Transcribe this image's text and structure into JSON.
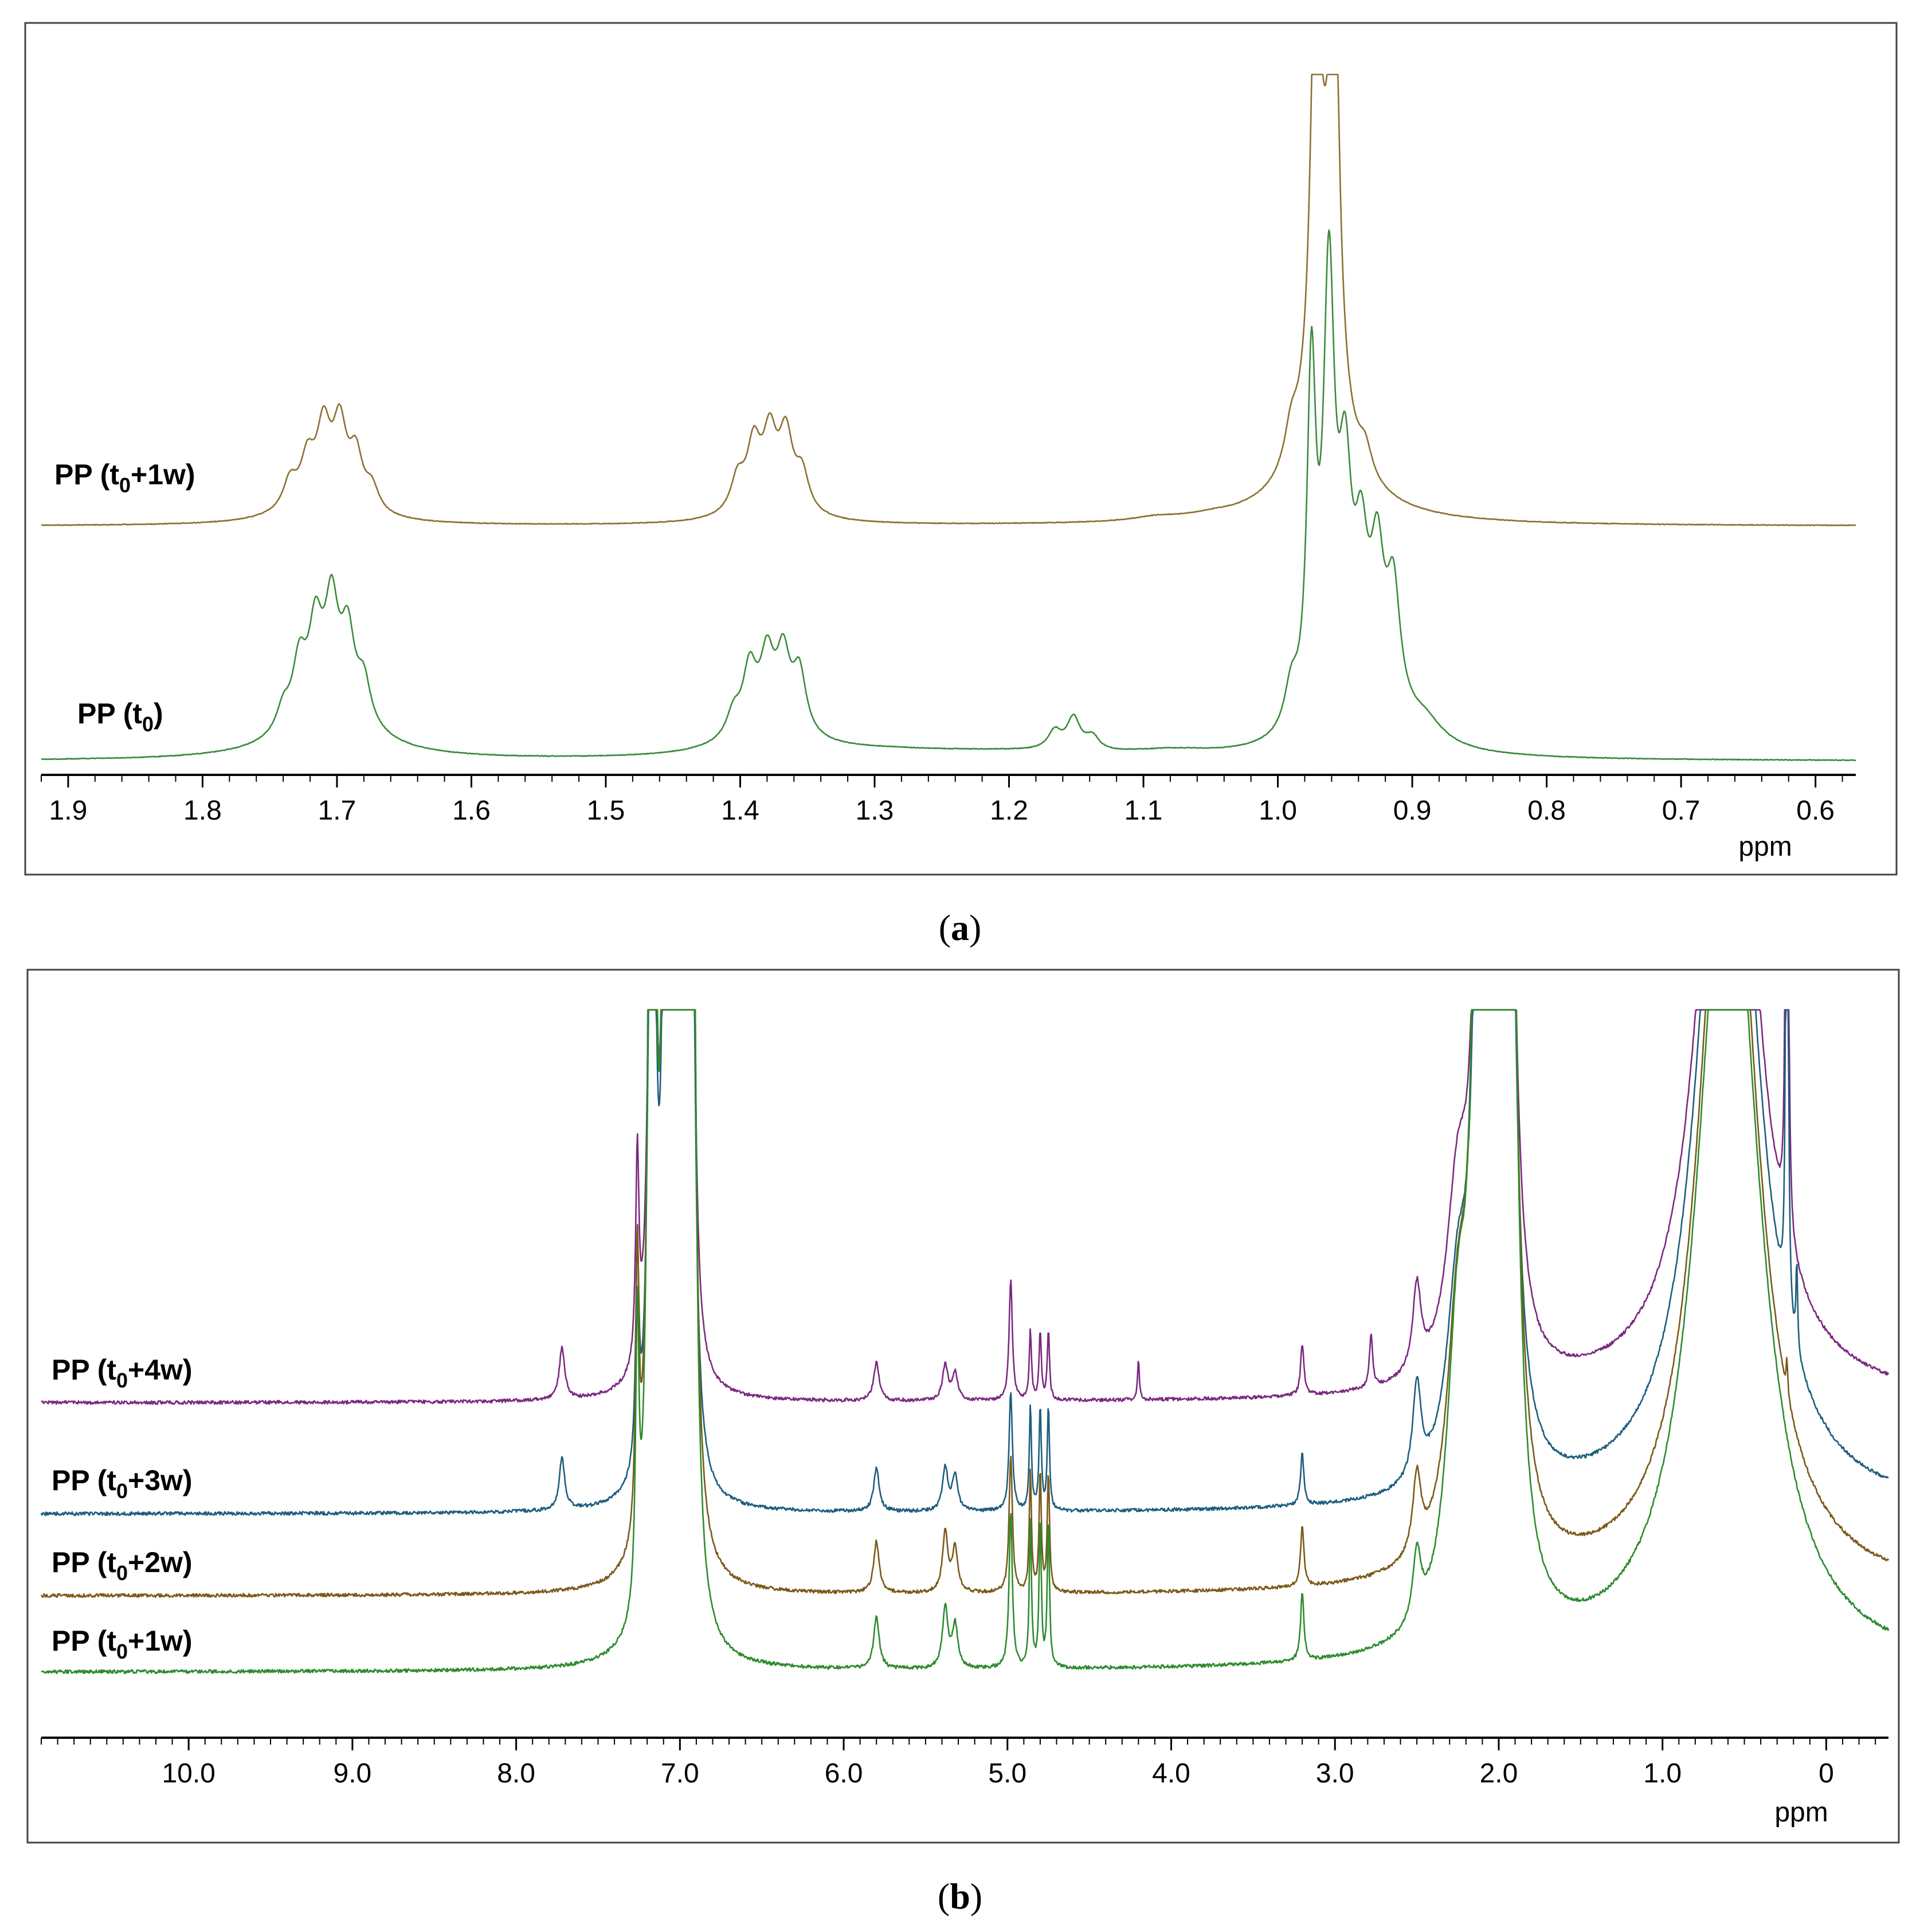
{
  "chart_data": [
    {
      "panel": "a",
      "type": "line",
      "title": "",
      "caption_open": "(",
      "caption_letter": "a",
      "caption_close": ")",
      "xlabel": "ppm",
      "ylabel": "",
      "xlim": [
        1.92,
        0.57
      ],
      "x_reversed": true,
      "xticks": [
        1.9,
        1.8,
        1.7,
        1.6,
        1.5,
        1.4,
        1.3,
        1.2,
        1.1,
        1.0,
        0.9,
        0.8,
        0.7,
        0.6
      ],
      "xtick_labels": [
        "1.9",
        "1.8",
        "1.7",
        "1.6",
        "1.5",
        "1.4",
        "1.3",
        "1.2",
        "1.1",
        "1.0",
        "0.9",
        "0.8",
        "0.7",
        "0.6"
      ],
      "minor_step": 0.02,
      "series": [
        {
          "name": "PP (t0+1w)",
          "label_main": "PP (t",
          "label_sub": "0",
          "label_end": "+1w)",
          "color": "#8c7033",
          "baseline": 0,
          "peaks": [
            {
              "ppm": 1.735,
              "h": 0.06,
              "w": 0.006
            },
            {
              "ppm": 1.722,
              "h": 0.09,
              "w": 0.006
            },
            {
              "ppm": 1.71,
              "h": 0.15,
              "w": 0.006
            },
            {
              "ppm": 1.698,
              "h": 0.16,
              "w": 0.006
            },
            {
              "ppm": 1.686,
              "h": 0.11,
              "w": 0.006
            },
            {
              "ppm": 1.674,
              "h": 0.05,
              "w": 0.006
            },
            {
              "ppm": 1.71,
              "h": 0.05,
              "w": 0.03
            },
            {
              "ppm": 1.402,
              "h": 0.07,
              "w": 0.006
            },
            {
              "ppm": 1.39,
              "h": 0.13,
              "w": 0.006
            },
            {
              "ppm": 1.378,
              "h": 0.14,
              "w": 0.006
            },
            {
              "ppm": 1.366,
              "h": 0.15,
              "w": 0.006
            },
            {
              "ppm": 1.354,
              "h": 0.08,
              "w": 0.006
            },
            {
              "ppm": 1.378,
              "h": 0.04,
              "w": 0.025
            },
            {
              "ppm": 1.09,
              "h": 0.008,
              "w": 0.02
            },
            {
              "ppm": 1.05,
              "h": 0.006,
              "w": 0.02
            },
            {
              "ppm": 0.99,
              "h": 0.08,
              "w": 0.006
            },
            {
              "ppm": 0.972,
              "h": 0.9,
              "w": 0.004
            },
            {
              "ppm": 0.958,
              "h": 0.9,
              "w": 0.004
            },
            {
              "ppm": 0.965,
              "h": 0.45,
              "w": 0.012
            },
            {
              "ppm": 0.935,
              "h": 0.06,
              "w": 0.006
            },
            {
              "ppm": 0.965,
              "h": 0.06,
              "w": 0.05
            }
          ]
        },
        {
          "name": "PP (t0)",
          "label_main": "PP (t",
          "label_sub": "0",
          "label_end": ")",
          "color": "#3c8a3c",
          "baseline": 0,
          "peaks": [
            {
              "ppm": 1.74,
              "h": 0.05,
              "w": 0.006
            },
            {
              "ppm": 1.728,
              "h": 0.13,
              "w": 0.006
            },
            {
              "ppm": 1.716,
              "h": 0.18,
              "w": 0.006
            },
            {
              "ppm": 1.704,
              "h": 0.22,
              "w": 0.006
            },
            {
              "ppm": 1.692,
              "h": 0.17,
              "w": 0.006
            },
            {
              "ppm": 1.68,
              "h": 0.09,
              "w": 0.006
            },
            {
              "ppm": 1.705,
              "h": 0.1,
              "w": 0.035
            },
            {
              "ppm": 1.405,
              "h": 0.05,
              "w": 0.006
            },
            {
              "ppm": 1.393,
              "h": 0.13,
              "w": 0.006
            },
            {
              "ppm": 1.38,
              "h": 0.14,
              "w": 0.006
            },
            {
              "ppm": 1.368,
              "h": 0.15,
              "w": 0.006
            },
            {
              "ppm": 1.356,
              "h": 0.13,
              "w": 0.006
            },
            {
              "ppm": 1.38,
              "h": 0.06,
              "w": 0.03
            },
            {
              "ppm": 1.3,
              "h": 0.015,
              "w": 0.08
            },
            {
              "ppm": 1.2,
              "h": 0.012,
              "w": 0.08
            },
            {
              "ppm": 1.166,
              "h": 0.04,
              "w": 0.006
            },
            {
              "ppm": 1.152,
              "h": 0.07,
              "w": 0.006
            },
            {
              "ppm": 1.138,
              "h": 0.03,
              "w": 0.006
            },
            {
              "ppm": 1.08,
              "h": 0.012,
              "w": 0.04
            },
            {
              "ppm": 0.99,
              "h": 0.09,
              "w": 0.006
            },
            {
              "ppm": 0.975,
              "h": 0.74,
              "w": 0.004
            },
            {
              "ppm": 0.962,
              "h": 0.92,
              "w": 0.005
            },
            {
              "ppm": 0.95,
              "h": 0.45,
              "w": 0.006
            },
            {
              "ppm": 0.938,
              "h": 0.28,
              "w": 0.006
            },
            {
              "ppm": 0.926,
              "h": 0.28,
              "w": 0.006
            },
            {
              "ppm": 0.914,
              "h": 0.25,
              "w": 0.006
            },
            {
              "ppm": 0.93,
              "h": 0.1,
              "w": 0.03
            },
            {
              "ppm": 0.89,
              "h": 0.04,
              "w": 0.015
            }
          ]
        }
      ]
    },
    {
      "panel": "b",
      "type": "line",
      "title": "",
      "caption_open": "(",
      "caption_letter": "b",
      "caption_close": ")",
      "xlabel": "ppm",
      "ylabel": "",
      "xlim": [
        10.9,
        -0.38
      ],
      "x_reversed": true,
      "xticks": [
        10.0,
        9.0,
        8.0,
        7.0,
        6.0,
        5.0,
        4.0,
        3.0,
        2.0,
        1.0,
        0.0
      ],
      "xtick_labels": [
        "10.0",
        "9.0",
        "8.0",
        "7.0",
        "6.0",
        "5.0",
        "4.0",
        "3.0",
        "2.0",
        "1.0",
        "0"
      ],
      "minor_step": 0.1,
      "clipped_at_top": true,
      "series": [
        {
          "name": "PP (t0+4w)",
          "label_main": "PP (t",
          "label_sub": "0",
          "label_end": "+4w)",
          "color": "#7b2a80",
          "peaks": [
            {
              "ppm": 7.72,
              "h": 0.3,
              "w": 0.02
            },
            {
              "ppm": 7.26,
              "h": 1.2,
              "w": 0.012
            },
            {
              "ppm": 7.17,
              "h": 5,
              "w": 0.02
            },
            {
              "ppm": 7.08,
              "h": 6,
              "w": 0.02
            },
            {
              "ppm": 7.0,
              "h": 6,
              "w": 0.02
            },
            {
              "ppm": 6.93,
              "h": 4,
              "w": 0.02
            },
            {
              "ppm": 5.8,
              "h": 0.22,
              "w": 0.02
            },
            {
              "ppm": 5.38,
              "h": 0.2,
              "w": 0.02
            },
            {
              "ppm": 5.32,
              "h": 0.16,
              "w": 0.02
            },
            {
              "ppm": 4.98,
              "h": 0.7,
              "w": 0.012
            },
            {
              "ppm": 4.86,
              "h": 0.4,
              "w": 0.008
            },
            {
              "ppm": 4.8,
              "h": 0.4,
              "w": 0.008
            },
            {
              "ppm": 4.75,
              "h": 0.4,
              "w": 0.008
            },
            {
              "ppm": 4.2,
              "h": 0.25,
              "w": 0.006
            },
            {
              "ppm": 3.2,
              "h": 0.3,
              "w": 0.012
            },
            {
              "ppm": 2.78,
              "h": 0.3,
              "w": 0.012
            },
            {
              "ppm": 2.5,
              "h": 0.5,
              "w": 0.03
            },
            {
              "ppm": 2.25,
              "h": 1.0,
              "w": 0.08
            },
            {
              "ppm": 2.1,
              "h": 6,
              "w": 0.04
            },
            {
              "ppm": 1.95,
              "h": 6,
              "w": 0.04
            },
            {
              "ppm": 0.6,
              "h": 5,
              "w": 0.18
            },
            {
              "ppm": 0.24,
              "h": 8,
              "w": 0.006
            }
          ]
        },
        {
          "name": "PP (t0+3w)",
          "label_main": "PP (t",
          "label_sub": "0",
          "label_end": "+3w)",
          "color": "#1e5e7e",
          "peaks": [
            {
              "ppm": 7.72,
              "h": 0.3,
              "w": 0.02
            },
            {
              "ppm": 7.26,
              "h": 1.2,
              "w": 0.012
            },
            {
              "ppm": 7.17,
              "h": 6,
              "w": 0.02
            },
            {
              "ppm": 7.08,
              "h": 7,
              "w": 0.02
            },
            {
              "ppm": 7.0,
              "h": 7,
              "w": 0.02
            },
            {
              "ppm": 6.93,
              "h": 5,
              "w": 0.02
            },
            {
              "ppm": 5.8,
              "h": 0.25,
              "w": 0.02
            },
            {
              "ppm": 5.38,
              "h": 0.25,
              "w": 0.02
            },
            {
              "ppm": 5.32,
              "h": 0.2,
              "w": 0.02
            },
            {
              "ppm": 4.98,
              "h": 0.7,
              "w": 0.012
            },
            {
              "ppm": 4.86,
              "h": 0.6,
              "w": 0.008
            },
            {
              "ppm": 4.8,
              "h": 0.6,
              "w": 0.008
            },
            {
              "ppm": 4.75,
              "h": 0.6,
              "w": 0.008
            },
            {
              "ppm": 3.2,
              "h": 0.3,
              "w": 0.012
            },
            {
              "ppm": 2.5,
              "h": 0.55,
              "w": 0.03
            },
            {
              "ppm": 2.25,
              "h": 1.0,
              "w": 0.08
            },
            {
              "ppm": 2.1,
              "h": 7,
              "w": 0.04
            },
            {
              "ppm": 1.95,
              "h": 7,
              "w": 0.04
            },
            {
              "ppm": 0.6,
              "h": 5,
              "w": 0.2
            },
            {
              "ppm": 0.24,
              "h": 6,
              "w": 0.006
            },
            {
              "ppm": 0.18,
              "h": 0.5,
              "w": 0.006
            }
          ]
        },
        {
          "name": "PP (t0+2w)",
          "label_main": "PP (t",
          "label_sub": "0",
          "label_end": "+2w)",
          "color": "#7a5a18",
          "peaks": [
            {
              "ppm": 7.26,
              "h": 1.6,
              "w": 0.012
            },
            {
              "ppm": 7.17,
              "h": 8,
              "w": 0.02
            },
            {
              "ppm": 7.08,
              "h": 9,
              "w": 0.02
            },
            {
              "ppm": 7.0,
              "h": 9,
              "w": 0.02
            },
            {
              "ppm": 6.93,
              "h": 7,
              "w": 0.02
            },
            {
              "ppm": 5.8,
              "h": 0.3,
              "w": 0.02
            },
            {
              "ppm": 5.38,
              "h": 0.35,
              "w": 0.02
            },
            {
              "ppm": 5.32,
              "h": 0.25,
              "w": 0.02
            },
            {
              "ppm": 4.98,
              "h": 0.8,
              "w": 0.012
            },
            {
              "ppm": 4.86,
              "h": 0.7,
              "w": 0.008
            },
            {
              "ppm": 4.8,
              "h": 0.7,
              "w": 0.008
            },
            {
              "ppm": 4.75,
              "h": 0.7,
              "w": 0.008
            },
            {
              "ppm": 3.2,
              "h": 0.35,
              "w": 0.012
            },
            {
              "ppm": 2.5,
              "h": 0.45,
              "w": 0.03
            },
            {
              "ppm": 2.25,
              "h": 1.2,
              "w": 0.08
            },
            {
              "ppm": 2.1,
              "h": 9,
              "w": 0.04
            },
            {
              "ppm": 1.95,
              "h": 9,
              "w": 0.04
            },
            {
              "ppm": 0.6,
              "h": 5,
              "w": 0.2
            },
            {
              "ppm": 0.24,
              "h": 0.2,
              "w": 0.006
            }
          ]
        },
        {
          "name": "PP (t0+1w)",
          "label_main": "PP (t",
          "label_sub": "0",
          "label_end": "+1w)",
          "color": "#2e8b2e",
          "peaks": [
            {
              "ppm": 7.26,
              "h": 1.6,
              "w": 0.012
            },
            {
              "ppm": 7.17,
              "h": 9,
              "w": 0.02
            },
            {
              "ppm": 7.08,
              "h": 10,
              "w": 0.02
            },
            {
              "ppm": 7.0,
              "h": 10,
              "w": 0.02
            },
            {
              "ppm": 6.93,
              "h": 8,
              "w": 0.02
            },
            {
              "ppm": 5.8,
              "h": 0.3,
              "w": 0.02
            },
            {
              "ppm": 5.38,
              "h": 0.35,
              "w": 0.02
            },
            {
              "ppm": 5.32,
              "h": 0.25,
              "w": 0.02
            },
            {
              "ppm": 4.98,
              "h": 0.9,
              "w": 0.012
            },
            {
              "ppm": 4.86,
              "h": 0.85,
              "w": 0.008
            },
            {
              "ppm": 4.8,
              "h": 0.85,
              "w": 0.008
            },
            {
              "ppm": 4.75,
              "h": 0.85,
              "w": 0.008
            },
            {
              "ppm": 3.2,
              "h": 0.4,
              "w": 0.012
            },
            {
              "ppm": 2.5,
              "h": 0.4,
              "w": 0.03
            },
            {
              "ppm": 2.25,
              "h": 1.5,
              "w": 0.08
            },
            {
              "ppm": 2.1,
              "h": 10,
              "w": 0.04
            },
            {
              "ppm": 1.95,
              "h": 10,
              "w": 0.04
            },
            {
              "ppm": 0.6,
              "h": 5,
              "w": 0.22
            }
          ]
        }
      ]
    }
  ]
}
